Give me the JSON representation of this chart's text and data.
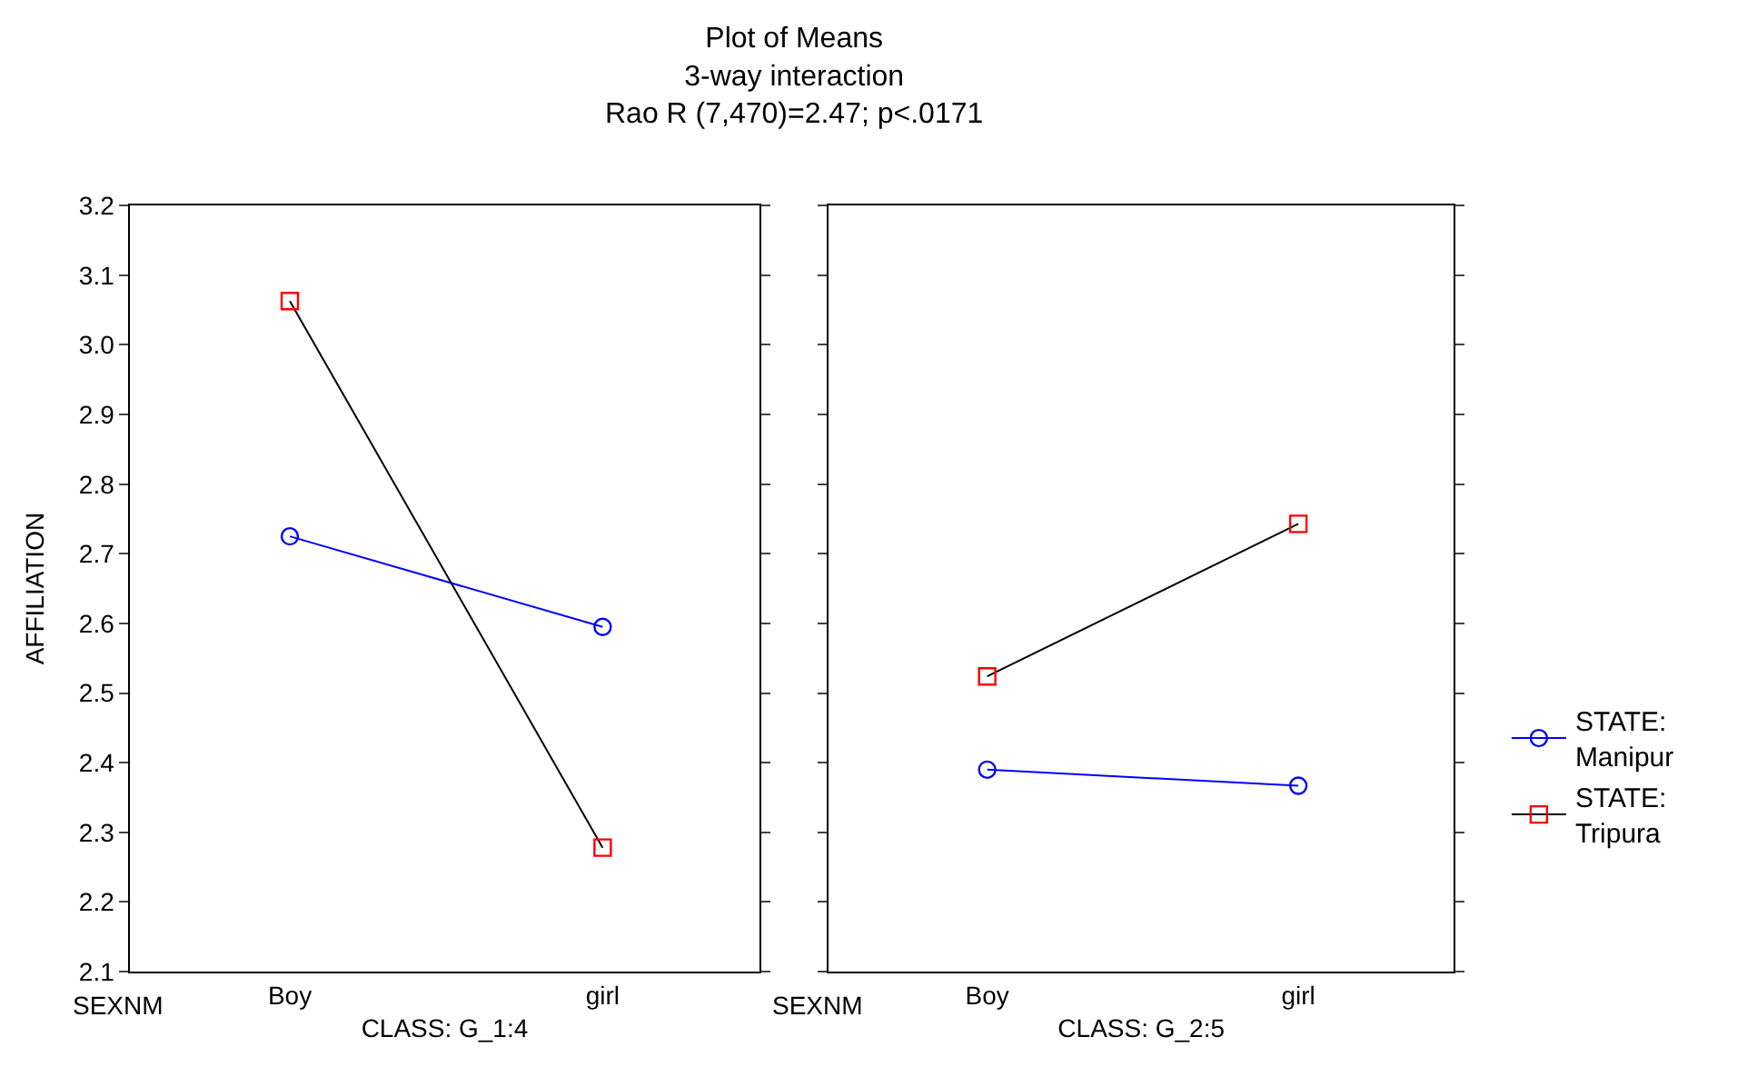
{
  "chart_data": [
    {
      "type": "line",
      "title": "Plot of Means",
      "subtitle": "3-way interaction\nRao R (7,470)=2.47; p<.0171",
      "ylabel": "AFFILIATION",
      "xlabel": "CLASS: G_1:4",
      "annotations": [
        "SEXNM"
      ],
      "categories": [
        "Boy",
        "girl"
      ],
      "ylim": [
        2.1,
        3.2
      ],
      "yticks": [
        2.1,
        2.2,
        2.3,
        2.4,
        2.5,
        2.6,
        2.7,
        2.8,
        2.9,
        {
          "value": 3,
          "label": "3.0"
        },
        3.1,
        3.2
      ],
      "legend": "right",
      "series": [
        {
          "name": "STATE:\nManipur",
          "color": "#0000ff",
          "marker": "circle",
          "values": [
            2.725,
            2.595
          ]
        },
        {
          "name": "STATE:\nTripura",
          "color": "#000000",
          "colors": [
            "#ff0000",
            "#ff0000"
          ],
          "marker": "square",
          "values": [
            3.063,
            2.278
          ]
        }
      ]
    },
    {
      "type": "line",
      "xlabel": "CLASS: G_2:5",
      "annotations": [
        "SEXNM"
      ],
      "categories": [
        "Boy",
        "girl"
      ],
      "ylim": [
        2.1,
        3.2
      ],
      "yticks": [
        2.1,
        2.2,
        2.3,
        2.4,
        2.5,
        2.6,
        2.7,
        2.8,
        2.9,
        3,
        3.1,
        3.2
      ],
      "tick_labels": "x",
      "series": [
        {
          "color": "#0000ff",
          "marker": "circle",
          "values": [
            2.39,
            2.367
          ]
        },
        {
          "color": "#000000",
          "colors": [
            "#ff0000",
            "#ff0000"
          ],
          "marker": "square",
          "values": [
            2.524,
            2.743
          ]
        }
      ]
    }
  ]
}
